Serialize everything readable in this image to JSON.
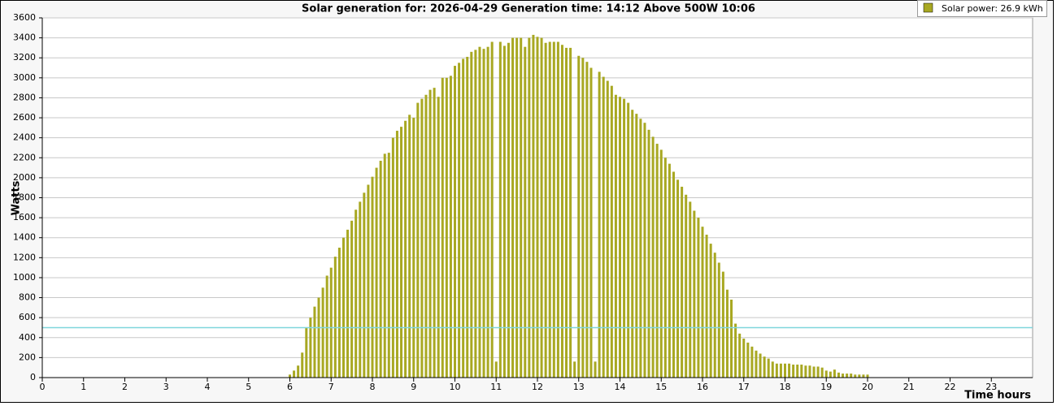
{
  "chart_data": {
    "type": "bar",
    "title": "Solar generation for: 2026-04-29 Generation time: 14:12 Above 500W 10:06",
    "x_label": "Time hours",
    "y_label": "Watts",
    "x": [
      6,
      6.1,
      6.2,
      6.3,
      6.4,
      6.5,
      6.6,
      6.7,
      6.8,
      6.9,
      7,
      7.1,
      7.2,
      7.3,
      7.4,
      7.5,
      7.6,
      7.7,
      7.8,
      7.9,
      8,
      8.1,
      8.2,
      8.3,
      8.4,
      8.5,
      8.6,
      8.7,
      8.8,
      8.9,
      9,
      9.1,
      9.2,
      9.3,
      9.4,
      9.5,
      9.6,
      9.7,
      9.8,
      9.9,
      10,
      10.1,
      10.2,
      10.3,
      10.4,
      10.5,
      10.6,
      10.7,
      10.8,
      10.9,
      11,
      11.1,
      11.2,
      11.3,
      11.4,
      11.5,
      11.6,
      11.7,
      11.8,
      11.9,
      12,
      12.1,
      12.2,
      12.3,
      12.4,
      12.5,
      12.6,
      12.7,
      12.8,
      12.9,
      13,
      13.1,
      13.2,
      13.3,
      13.4,
      13.5,
      13.6,
      13.7,
      13.8,
      13.9,
      14,
      14.1,
      14.2,
      14.3,
      14.4,
      14.5,
      14.6,
      14.7,
      14.8,
      14.9,
      15,
      15.1,
      15.2,
      15.3,
      15.4,
      15.5,
      15.6,
      15.7,
      15.8,
      15.9,
      16,
      16.1,
      16.2,
      16.3,
      16.4,
      16.5,
      16.6,
      16.7,
      16.8,
      16.9,
      17,
      17.1,
      17.2,
      17.3,
      17.4,
      17.5,
      17.6,
      17.7,
      17.8,
      17.9,
      18,
      18.1,
      18.2,
      18.3,
      18.4,
      18.5,
      18.6,
      18.7,
      18.8,
      18.9,
      19,
      19.1,
      19.2,
      19.3,
      19.4,
      19.5,
      19.6,
      19.7,
      19.8,
      19.9,
      20
    ],
    "series": [
      {
        "name": "Solar power: 26.9 kWh",
        "color": "#a8a822",
        "values": [
          30,
          70,
          120,
          250,
          500,
          600,
          710,
          800,
          900,
          1020,
          1100,
          1210,
          1300,
          1400,
          1480,
          1570,
          1680,
          1760,
          1850,
          1930,
          2010,
          2100,
          2170,
          2240,
          2250,
          2400,
          2470,
          2510,
          2570,
          2630,
          2600,
          2750,
          2790,
          2830,
          2880,
          2900,
          2810,
          3000,
          3000,
          3020,
          3120,
          3150,
          3190,
          3210,
          3260,
          3280,
          3310,
          3290,
          3310,
          3360,
          160,
          3360,
          3320,
          3350,
          3400,
          3400,
          3400,
          3310,
          3400,
          3430,
          3410,
          3400,
          3350,
          3360,
          3360,
          3360,
          3330,
          3300,
          3300,
          160,
          3220,
          3200,
          3160,
          3100,
          160,
          3060,
          3010,
          2970,
          2920,
          2830,
          2810,
          2790,
          2750,
          2680,
          2640,
          2590,
          2550,
          2480,
          2410,
          2340,
          2280,
          2200,
          2140,
          2060,
          1980,
          1910,
          1830,
          1760,
          1670,
          1600,
          1510,
          1430,
          1340,
          1250,
          1150,
          1060,
          880,
          780,
          540,
          440,
          390,
          350,
          310,
          270,
          240,
          210,
          190,
          160,
          140,
          140,
          140,
          140,
          130,
          130,
          130,
          120,
          120,
          110,
          110,
          100,
          70,
          60,
          80,
          50,
          40,
          40,
          40,
          30,
          30,
          30,
          30
        ]
      }
    ],
    "threshold": {
      "value": 500,
      "color": "#7fd6dc"
    },
    "xlim": [
      0,
      24
    ],
    "xticks": [
      0,
      1,
      2,
      3,
      4,
      5,
      6,
      7,
      8,
      9,
      10,
      11,
      12,
      13,
      14,
      15,
      16,
      17,
      18,
      19,
      20,
      21,
      22,
      23
    ],
    "ylim": [
      0,
      3600
    ],
    "yticks": [
      0,
      200,
      400,
      600,
      800,
      1000,
      1200,
      1400,
      1600,
      1800,
      2000,
      2200,
      2400,
      2600,
      2800,
      3000,
      3200,
      3400,
      3600
    ],
    "grid": true,
    "legend": "upper right"
  }
}
